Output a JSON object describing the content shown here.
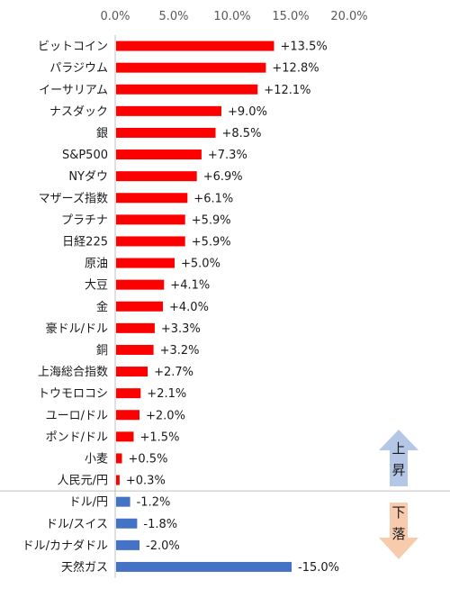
{
  "chart_data": {
    "type": "bar",
    "orientation": "horizontal",
    "title": "",
    "xlabel": "",
    "ylabel": "",
    "xlim": [
      0,
      20
    ],
    "x_ticks": [
      "0.0%",
      "5.0%",
      "10.0%",
      "15.0%",
      "20.0%"
    ],
    "x_tick_values": [
      0,
      5,
      10,
      15,
      20
    ],
    "grid": false,
    "categories": [
      "ビットコイン",
      "パラジウム",
      "イーサリアム",
      "ナスダック",
      "銀",
      "S&P500",
      "NYダウ",
      "マザーズ指数",
      "プラチナ",
      "日経225",
      "原油",
      "大豆",
      "金",
      "豪ドル/ドル",
      "銅",
      "上海総合指数",
      "トウモロコシ",
      "ユーロ/ドル",
      "ポンド/ドル",
      "小麦",
      "人民元/円",
      "ドル/円",
      "ドル/スイス",
      "ドル/カナダドル",
      "天然ガス"
    ],
    "values": [
      13.5,
      12.8,
      12.1,
      9.0,
      8.5,
      7.3,
      6.9,
      6.1,
      5.9,
      5.9,
      5.0,
      4.1,
      4.0,
      3.3,
      3.2,
      2.7,
      2.1,
      2.0,
      1.5,
      0.5,
      0.3,
      -1.2,
      -1.8,
      -2.0,
      -15.0
    ],
    "data_labels": [
      "+13.5%",
      "+12.8%",
      "+12.1%",
      "+9.0%",
      "+8.5%",
      "+7.3%",
      "+6.9%",
      "+6.1%",
      "+5.9%",
      "+5.9%",
      "+5.0%",
      "+4.1%",
      "+4.0%",
      "+3.3%",
      "+3.2%",
      "+2.7%",
      "+2.1%",
      "+2.0%",
      "+1.5%",
      "+0.5%",
      "+0.3%",
      "-1.2%",
      "-1.8%",
      "-2.0%",
      "-15.0%"
    ],
    "colors": {
      "rise": "#ff0000",
      "fall": "#4472c4"
    },
    "annotations": {
      "up": {
        "chars": [
          "上",
          "昇"
        ],
        "color": "#b4c7e7"
      },
      "down": {
        "chars": [
          "下",
          "落"
        ],
        "color": "#f8cbad"
      }
    }
  }
}
